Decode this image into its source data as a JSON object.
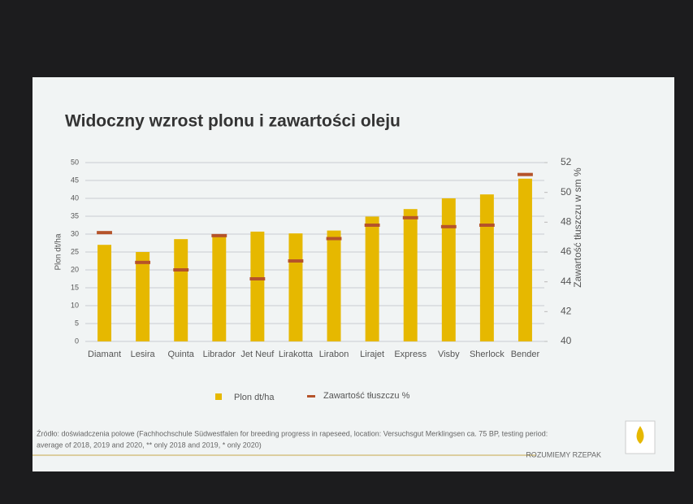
{
  "chart_data": {
    "type": "bar_marker",
    "title": "Widoczny wzrost plonu i zawartości oleju",
    "categories": [
      "Diamant",
      "Lesira",
      "Quinta",
      "Librador",
      "Jet Neuf",
      "Lirakotta",
      "Lirabon",
      "Lirajet",
      "Express",
      "Visby",
      "Sherlock",
      "Bender"
    ],
    "series": [
      {
        "name": "Plon dt/ha",
        "color": "#e6b800",
        "values": [
          27,
          25,
          28.6,
          29.5,
          30.7,
          30.2,
          31,
          34.9,
          37,
          40,
          41.1,
          45.5
        ]
      },
      {
        "name": "Zawartość tłuszczu %",
        "color": "#b5532a",
        "axis": "y2",
        "values": [
          47.3,
          45.3,
          44.8,
          47.1,
          44.2,
          45.4,
          46.9,
          47.8,
          48.3,
          47.7,
          47.8,
          51.2
        ]
      }
    ],
    "ylabel": "Plon dt/ha",
    "y2label": "Zawartość tłuszczu w sm %",
    "ylim": [
      0,
      50
    ],
    "yticks": [
      0,
      5,
      10,
      15,
      20,
      25,
      30,
      35,
      40,
      45,
      50
    ],
    "y2lim": [
      40,
      52
    ],
    "y2ticks": [
      40,
      42,
      44,
      46,
      48,
      50,
      52
    ],
    "grid": true,
    "legend": "bottom"
  },
  "footer": {
    "source": [
      "Źródło: doświadczenia polowe (Fachhochschule Südwestfalen for breeding progress in rapeseed, location: Versuchsgut Merklingsen ca. 75 BP, testing period:",
      "average of 2018, 2019 and 2020, ** only 2018 and 2019, * only 2020)"
    ],
    "brand": "ROZUMIEMY RZEPAK"
  }
}
